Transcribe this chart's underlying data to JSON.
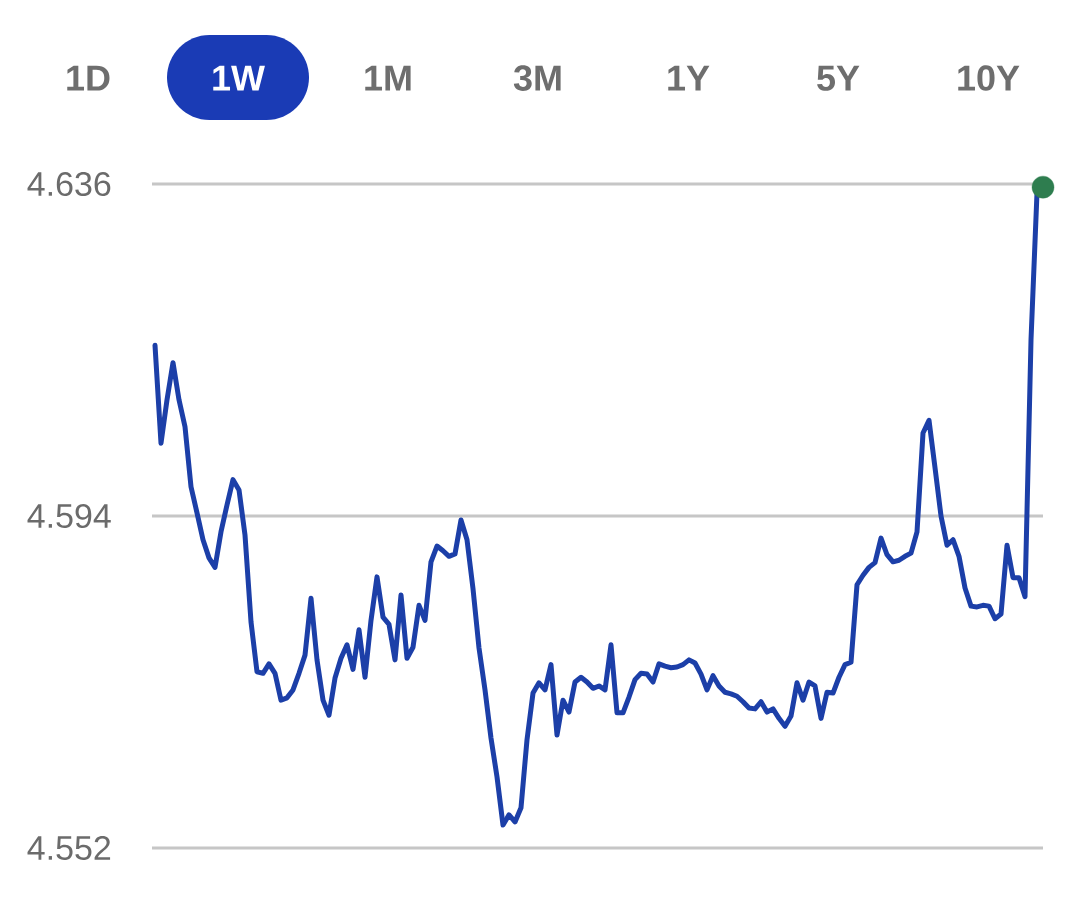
{
  "chart_data": {
    "type": "line",
    "annotations": [
      "1D",
      "1W",
      "1M",
      "3M",
      "1Y",
      "5Y",
      "10Y"
    ],
    "categories": [
      null,
      null,
      null,
      null,
      null,
      null,
      null,
      null,
      null,
      null,
      null,
      null,
      null,
      null,
      null,
      null,
      null,
      null,
      null,
      null,
      null,
      null,
      null,
      null,
      null,
      null,
      null,
      null,
      null,
      null,
      null,
      null,
      null,
      null,
      null,
      null,
      null,
      null,
      null,
      null,
      null,
      null,
      null,
      null,
      null,
      null,
      null,
      null,
      null,
      null,
      null,
      null,
      null,
      null,
      null,
      null,
      null,
      null,
      null,
      null,
      null,
      null,
      null,
      null,
      null,
      null,
      null,
      null,
      null,
      null,
      null,
      null,
      null,
      null,
      null,
      null,
      null,
      null,
      null,
      null,
      null,
      null,
      null,
      null,
      null,
      null,
      null,
      null,
      null,
      null,
      null,
      null,
      null,
      null,
      null,
      null,
      null,
      null,
      null,
      null,
      null,
      null,
      null,
      null,
      null,
      null,
      null,
      null,
      null,
      null,
      null,
      null,
      null,
      null,
      null,
      null,
      null,
      null,
      null,
      null,
      null,
      null,
      null,
      null,
      null,
      null,
      null,
      null,
      null,
      null,
      null,
      null,
      null,
      null,
      null,
      null,
      null,
      null,
      null,
      null,
      null,
      null,
      null,
      null,
      null,
      null,
      null,
      null,
      null
    ],
    "series": [
      {
        "color": "#1c3fa8",
        "values": [
          4.6156,
          4.6032,
          4.6087,
          4.6134,
          4.6087,
          4.6053,
          4.5977,
          4.5944,
          4.591,
          4.5887,
          4.5875,
          4.592,
          4.5954,
          4.5986,
          4.5973,
          4.5916,
          4.5806,
          4.5743,
          4.5741,
          4.5753,
          4.5741,
          4.5707,
          4.571,
          4.572,
          4.5741,
          4.5764,
          4.5836,
          4.5758,
          4.5707,
          4.5688,
          4.5735,
          4.576,
          4.5777,
          4.5746,
          4.5796,
          4.5736,
          4.5808,
          4.5863,
          4.5812,
          4.5803,
          4.5758,
          4.584,
          4.576,
          4.5774,
          4.5827,
          4.5808,
          4.5882,
          4.5902,
          4.5896,
          4.5889,
          4.5892,
          4.5935,
          4.591,
          4.5848,
          4.5773,
          4.572,
          4.5659,
          4.561,
          4.5549,
          4.5562,
          4.5553,
          4.5571,
          4.5657,
          4.5716,
          4.5729,
          4.572,
          4.5752,
          4.5663,
          4.5707,
          4.5692,
          4.573,
          4.5736,
          4.573,
          4.5722,
          4.5725,
          4.572,
          4.5777,
          4.5691,
          4.5691,
          4.5711,
          4.5733,
          4.5741,
          4.574,
          4.573,
          4.5753,
          4.575,
          4.5748,
          4.5749,
          4.5752,
          4.5758,
          4.5754,
          4.574,
          4.572,
          4.5738,
          4.5725,
          4.5717,
          4.5715,
          4.5712,
          4.5705,
          4.5697,
          4.5696,
          4.5705,
          4.5692,
          4.5696,
          4.5684,
          4.5674,
          4.5687,
          4.5729,
          4.5707,
          4.573,
          4.5725,
          4.5684,
          4.5717,
          4.5716,
          4.5736,
          4.5752,
          4.5755,
          4.5853,
          4.5865,
          4.5875,
          4.5881,
          4.5912,
          4.5891,
          4.5882,
          4.5884,
          4.5889,
          4.5893,
          4.592,
          4.6045,
          4.6061,
          4.6001,
          4.594,
          4.5903,
          4.591,
          4.5889,
          4.5849,
          4.5826,
          4.5825,
          4.5827,
          4.5826,
          4.581,
          4.5816,
          4.5903,
          4.5862,
          4.5862,
          4.5838,
          4.6163,
          4.6349,
          4.6356
        ]
      },
      {
        "type": "scatter",
        "color": "#2e7d4f",
        "values": [
          null,
          null,
          null,
          null,
          null,
          null,
          null,
          null,
          null,
          null,
          null,
          null,
          null,
          null,
          null,
          null,
          null,
          null,
          null,
          null,
          null,
          null,
          null,
          null,
          null,
          null,
          null,
          null,
          null,
          null,
          null,
          null,
          null,
          null,
          null,
          null,
          null,
          null,
          null,
          null,
          null,
          null,
          null,
          null,
          null,
          null,
          null,
          null,
          null,
          null,
          null,
          null,
          null,
          null,
          null,
          null,
          null,
          null,
          null,
          null,
          null,
          null,
          null,
          null,
          null,
          null,
          null,
          null,
          null,
          null,
          null,
          null,
          null,
          null,
          null,
          null,
          null,
          null,
          null,
          null,
          null,
          null,
          null,
          null,
          null,
          null,
          null,
          null,
          null,
          null,
          null,
          null,
          null,
          null,
          null,
          null,
          null,
          null,
          null,
          null,
          null,
          null,
          null,
          null,
          null,
          null,
          null,
          null,
          null,
          null,
          null,
          null,
          null,
          null,
          null,
          null,
          null,
          null,
          null,
          null,
          null,
          null,
          null,
          null,
          null,
          null,
          null,
          null,
          null,
          null,
          null,
          null,
          null,
          null,
          null,
          null,
          null,
          null,
          null,
          null,
          null,
          null,
          null,
          null,
          null,
          null,
          null,
          null,
          4.6356
        ]
      }
    ],
    "ylim": [
      4.552,
      4.636
    ],
    "yticks": [
      4.552,
      4.594,
      4.636
    ],
    "grid": "y",
    "tick_labels": "y"
  }
}
